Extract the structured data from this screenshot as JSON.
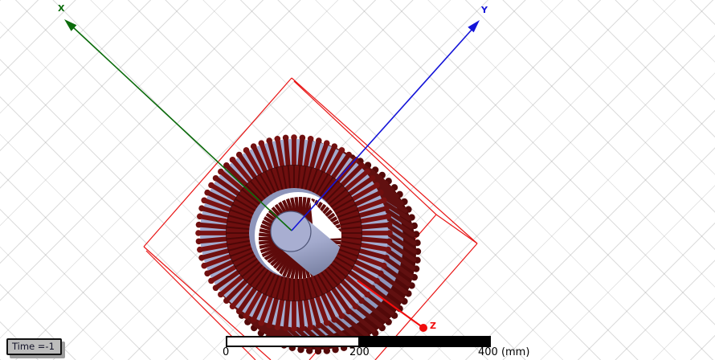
{
  "viewport": {
    "background_color": "#ffffff",
    "grid_color": "#d9d9d9"
  },
  "axes": {
    "x": {
      "label": "X",
      "color": "#0b6b0b"
    },
    "y": {
      "label": "Y",
      "color": "#1414d8"
    },
    "z": {
      "label": "Z",
      "color": "#f00d0d"
    }
  },
  "scale_bar": {
    "tick_start": "0",
    "tick_mid": "200",
    "tick_end": "400 (mm)"
  },
  "status": {
    "time_label": "Time =-1"
  },
  "model": {
    "winding_color": "#7a1212",
    "winding_dark_color": "#5e0b0b",
    "core_color": "#a3abce",
    "core_side_color": "#8e96bb",
    "back_silhouette_color": "#520909",
    "shaft_color": "#a8aed1",
    "region_outline_color": "#e81414"
  }
}
